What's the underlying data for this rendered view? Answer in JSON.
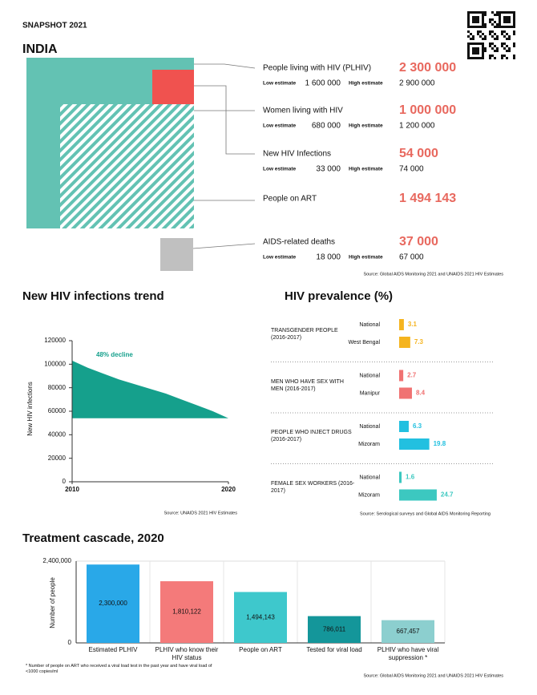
{
  "header": {
    "title": "SNAPSHOT 2021",
    "country": "INDIA"
  },
  "snapshot": {
    "items": [
      {
        "label": "People living with HIV (PLHIV)",
        "value": "2 300 000",
        "low_label": "Low estimate",
        "low": "1 600 000",
        "high_label": "High estimate",
        "high": "2 900 000"
      },
      {
        "label": "Women living with HIV",
        "value": "1 000 000",
        "low_label": "Low estimate",
        "low": "680 000",
        "high_label": "High estimate",
        "high": "1 200 000"
      },
      {
        "label": "New HIV Infections",
        "value": "54 000",
        "low_label": "Low estimate",
        "low": "33 000",
        "high_label": "High estimate",
        "high": "74 000"
      },
      {
        "label": "People on ART",
        "value": "1 494 143"
      },
      {
        "label": "AIDS-related deaths",
        "value": "37 000",
        "low_label": "Low estimate",
        "low": "18 000",
        "high_label": "High estimate",
        "high": "67 000"
      }
    ],
    "source": "Source: Global AIDS Monitoring 2021 and UNAIDS 2021 HIV Estimates"
  },
  "chart_data": [
    {
      "type": "area",
      "title": "New HIV infections trend",
      "y_label": "New HIV infections",
      "annotation": "48% decline",
      "x": [
        2010,
        2011,
        2012,
        2013,
        2014,
        2015,
        2016,
        2017,
        2018,
        2019,
        2020
      ],
      "values": [
        103000,
        97000,
        92000,
        87000,
        83000,
        79000,
        75000,
        70000,
        65000,
        60000,
        54000
      ],
      "color": "#15a08c",
      "xlim": [
        2010,
        2020
      ],
      "xticks": [
        2010,
        2020
      ],
      "ylim": [
        0,
        120000
      ],
      "yticks": [
        0,
        20000,
        40000,
        60000,
        80000,
        100000,
        120000
      ],
      "source": "Source: UNAIDS 2021 HIV Estimates"
    },
    {
      "type": "grouped-hbar",
      "title": "HIV prevalence (%)",
      "groups": [
        {
          "name": "TRANSGENDER PEOPLE (2016-2017)",
          "categories": [
            "National",
            "West Bengal"
          ],
          "values": [
            3.1,
            7.3
          ],
          "color": "#f5b41f"
        },
        {
          "name": "MEN WHO HAVE SEX WITH MEN (2016-2017)",
          "categories": [
            "National",
            "Manipur"
          ],
          "values": [
            2.7,
            8.4
          ],
          "color": "#f07272"
        },
        {
          "name": "PEOPLE WHO INJECT DRUGS (2016-2017)",
          "categories": [
            "National",
            "Mizoram"
          ],
          "values": [
            6.3,
            19.8
          ],
          "color": "#22c0e0"
        },
        {
          "name": "FEMALE SEX WORKERS (2016-2017)",
          "categories": [
            "National",
            "Mizoram"
          ],
          "values": [
            1.6,
            24.7
          ],
          "color": "#3cc8c0"
        }
      ],
      "source": "Source: Serological surveys and Global AIDS Monitoring Reporting"
    },
    {
      "type": "bar",
      "title": "Treatment cascade, 2020",
      "y_label": "Number of people",
      "categories": [
        "Estimated PLHIV",
        "PLHIV who know their HIV status",
        "People on ART",
        "Tested for viral load",
        "PLHIV who have viral suppression *"
      ],
      "values": [
        2300000,
        1810122,
        1494143,
        786011,
        667457
      ],
      "value_labels": [
        "2,300,000",
        "1,810,122",
        "1,494,143",
        "786,011",
        "667,457"
      ],
      "colors": [
        "#29a8e8",
        "#f47a7a",
        "#3ec8cc",
        "#14969a",
        "#8ccfcf"
      ],
      "ylim": [
        0,
        2400000
      ],
      "yticks": [
        0,
        {
          "value": 2400000,
          "label": "2,400,000"
        }
      ],
      "grid": true,
      "footnote": "* Number of people on ART who received a viral load test in the past year and have viral load of <1000 copies/ml",
      "source": "Source: Global AIDS Monitoring 2021 and UNAIDS 2021 HIV Estimates"
    }
  ]
}
